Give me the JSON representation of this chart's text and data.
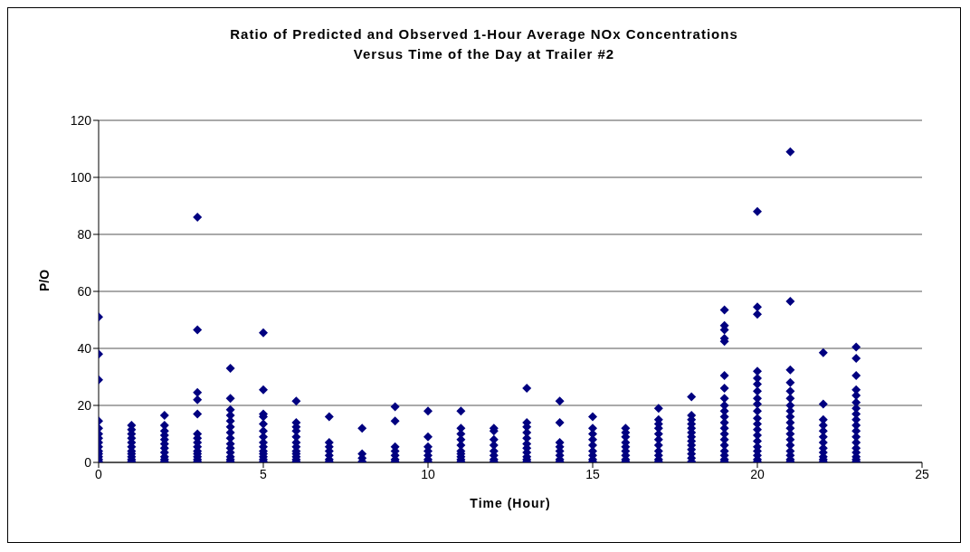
{
  "chart_data": {
    "type": "scatter",
    "title": "Ratio of Predicted and Observed 1-Hour Average NOx Concentrations Versus Time of the Day at Trailer #2",
    "xlabel": "Time (Hour)",
    "ylabel": "P/O",
    "x": [
      0,
      0,
      0,
      0,
      0,
      0,
      0,
      0,
      0,
      0,
      0,
      0,
      0,
      0,
      1,
      1,
      1,
      1,
      1,
      1,
      1,
      1,
      1,
      1,
      1,
      2,
      2,
      2,
      2,
      2,
      2,
      2,
      2,
      2,
      2,
      2,
      3,
      3,
      3,
      3,
      3,
      3,
      3,
      3,
      3,
      3,
      3,
      3,
      3,
      3,
      4,
      4,
      4,
      4,
      4,
      4,
      4,
      4,
      4,
      4,
      4,
      4,
      4,
      4,
      5,
      5,
      5,
      5,
      5,
      5,
      5,
      5,
      5,
      5,
      5,
      5,
      5,
      5,
      6,
      6,
      6,
      6,
      6,
      6,
      6,
      6,
      6,
      6,
      6,
      6,
      7,
      7,
      7,
      7,
      7,
      7,
      7,
      8,
      8,
      8,
      8,
      9,
      9,
      9,
      9,
      9,
      9,
      9,
      10,
      10,
      10,
      10,
      10,
      10,
      10,
      11,
      11,
      11,
      11,
      11,
      11,
      11,
      11,
      11,
      11,
      12,
      12,
      12,
      12,
      12,
      12,
      12,
      12,
      13,
      13,
      13,
      13,
      13,
      13,
      13,
      13,
      13,
      13,
      13,
      14,
      14,
      14,
      14,
      14,
      14,
      14,
      14,
      15,
      15,
      15,
      15,
      15,
      15,
      15,
      15,
      15,
      16,
      16,
      16,
      16,
      16,
      16,
      16,
      16,
      16,
      17,
      17,
      17,
      17,
      17,
      17,
      17,
      17,
      17,
      17,
      17,
      18,
      18,
      18,
      18,
      18,
      18,
      18,
      18,
      18,
      18,
      18,
      18,
      18,
      19,
      19,
      19,
      19,
      19,
      19,
      19,
      19,
      19,
      19,
      19,
      19,
      19,
      19,
      19,
      19,
      19,
      19,
      19,
      19,
      20,
      20,
      20,
      20,
      20,
      20,
      20,
      20,
      20,
      20,
      20,
      20,
      20,
      20,
      20,
      20,
      20,
      20,
      20,
      20,
      21,
      21,
      21,
      21,
      21,
      21,
      21,
      21,
      21,
      21,
      21,
      21,
      21,
      21,
      21,
      21,
      21,
      21,
      22,
      22,
      22,
      22,
      22,
      22,
      22,
      22,
      22,
      22,
      22,
      22,
      23,
      23,
      23,
      23,
      23,
      23,
      23,
      23,
      23,
      23,
      23,
      23,
      23,
      23,
      23,
      23,
      23,
      23
    ],
    "values": [
      51,
      38,
      29,
      14.5,
      12,
      10,
      8.5,
      7,
      5.5,
      4,
      3,
      2,
      1,
      0.3,
      13,
      11.5,
      10,
      8.5,
      7,
      5.5,
      4,
      3,
      2,
      1,
      0.3,
      16.5,
      13,
      11,
      9.5,
      8,
      6.5,
      5,
      3.5,
      2,
      1,
      0.3,
      86,
      46.5,
      24.5,
      22,
      17,
      10,
      8.5,
      7,
      5.5,
      4,
      3,
      2,
      1,
      0.3,
      33,
      22.5,
      18.5,
      16.5,
      14.5,
      12.5,
      10.5,
      8.5,
      6.5,
      5,
      3.5,
      2,
      1,
      0.3,
      45.5,
      25.5,
      17,
      16,
      13.5,
      11,
      9,
      7,
      5.5,
      4,
      3,
      2,
      1,
      0.3,
      21.5,
      14,
      12.5,
      11,
      9,
      7,
      5.5,
      4,
      3,
      2,
      1,
      0.3,
      16,
      7,
      5.5,
      4,
      2.5,
      1,
      0.3,
      12,
      3,
      1.5,
      0.3,
      19.5,
      14.5,
      5.5,
      4,
      2.5,
      1,
      0.3,
      18,
      9,
      5.5,
      4,
      2.5,
      1,
      0.3,
      18,
      12,
      10,
      8,
      6,
      4,
      3,
      2,
      1,
      0.3,
      12,
      11,
      8,
      6,
      4,
      2.5,
      1,
      0.3,
      26,
      14,
      12.5,
      10.5,
      8.5,
      6.5,
      5,
      3.5,
      2,
      1,
      0.3,
      21.5,
      14,
      7,
      5.5,
      4,
      2.5,
      1,
      0.3,
      16,
      12,
      10,
      8,
      6,
      4,
      2.5,
      1,
      0.3,
      12,
      10.5,
      9,
      7,
      5.5,
      4,
      2.5,
      1,
      0.3,
      19,
      15,
      13.5,
      12,
      10,
      8,
      6,
      4,
      2.5,
      1,
      0.3,
      23,
      16.5,
      15,
      13.5,
      12,
      10.5,
      9,
      7.5,
      6,
      4.5,
      3,
      1.5,
      0.3,
      53.5,
      48,
      46.5,
      43.5,
      42.5,
      30.5,
      26,
      22.5,
      20,
      18,
      16,
      14,
      12,
      10,
      8,
      6,
      4,
      2.5,
      1,
      0.3,
      88,
      54.5,
      52,
      32,
      29.5,
      27.5,
      25,
      22.5,
      20.5,
      18,
      15.5,
      13.5,
      11.5,
      9.5,
      7.5,
      5.5,
      4,
      2.5,
      1,
      0.3,
      109,
      56.5,
      32.5,
      28,
      25,
      22.5,
      20,
      18,
      16,
      14,
      12,
      10,
      8,
      6,
      4,
      2.5,
      1,
      0.3,
      38.5,
      20.5,
      15,
      13,
      11,
      9,
      7,
      5,
      3.5,
      2,
      1,
      0.3,
      40.5,
      36.5,
      30.5,
      25.5,
      23.5,
      21,
      19,
      17,
      15,
      13,
      11,
      9,
      7,
      5,
      3.5,
      2,
      1,
      0.3
    ],
    "color": "#000080",
    "marker": "diamond",
    "xlim": [
      0,
      25
    ],
    "xticks": [
      0,
      5,
      10,
      15,
      20,
      25
    ],
    "ylim": [
      0,
      120
    ],
    "yticks": [
      0,
      20,
      40,
      60,
      80,
      100,
      120
    ],
    "grid": "y",
    "legend": false
  }
}
